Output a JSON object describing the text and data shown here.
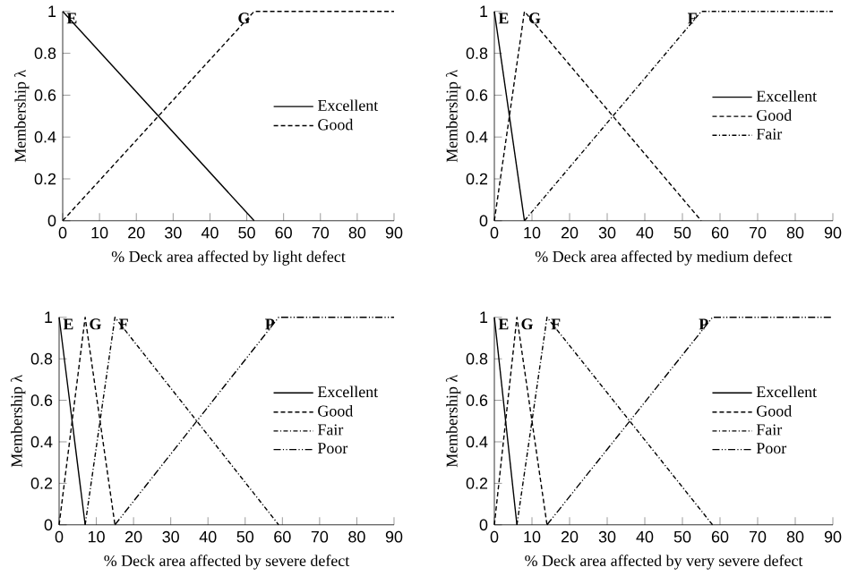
{
  "chart_data": [
    {
      "type": "line",
      "xlabel": "% Deck area affected by light defect",
      "ylabel": "Membership λ",
      "xlim": [
        0,
        90
      ],
      "xticks": [
        0,
        10,
        20,
        30,
        40,
        50,
        60,
        70,
        80,
        90
      ],
      "ylim": [
        0,
        1
      ],
      "yticks": [
        0,
        0.2,
        0.4,
        0.6,
        0.8,
        1
      ],
      "legend": "right",
      "series": [
        {
          "name": "Excellent",
          "color": "#000000",
          "line_style": "solid",
          "x": [
            0,
            52
          ],
          "values": [
            1,
            0
          ]
        },
        {
          "name": "Good",
          "color": "#000000",
          "line_style": "dashed",
          "x": [
            0,
            52,
            90
          ],
          "values": [
            0,
            1,
            1
          ]
        }
      ],
      "annotations": [
        {
          "text": "E",
          "x": 0,
          "y": 1
        },
        {
          "text": "G",
          "x": 52,
          "y": 1
        }
      ]
    },
    {
      "type": "line",
      "xlabel": "% Deck area affected by medium defect",
      "ylabel": "Membership λ",
      "xlim": [
        0,
        90
      ],
      "xticks": [
        0,
        10,
        20,
        30,
        40,
        50,
        60,
        70,
        80,
        90
      ],
      "ylim": [
        0,
        1
      ],
      "yticks": [
        0,
        0.2,
        0.4,
        0.6,
        0.8,
        1
      ],
      "legend": "right",
      "series": [
        {
          "name": "Excellent",
          "color": "#000000",
          "line_style": "solid",
          "x": [
            0,
            8
          ],
          "values": [
            1,
            0
          ]
        },
        {
          "name": "Good",
          "color": "#000000",
          "line_style": "dashed",
          "x": [
            0,
            8,
            55
          ],
          "values": [
            0,
            1,
            0
          ]
        },
        {
          "name": "Fair",
          "color": "#000000",
          "line_style": "dashdot",
          "x": [
            8,
            55,
            90
          ],
          "values": [
            0,
            1,
            1
          ]
        }
      ],
      "annotations": [
        {
          "text": "E",
          "x": 0,
          "y": 1
        },
        {
          "text": "G",
          "x": 8,
          "y": 1
        },
        {
          "text": "F",
          "x": 55,
          "y": 1
        }
      ]
    },
    {
      "type": "line",
      "xlabel": "% Deck area affected by severe defect",
      "ylabel": "Membership λ",
      "xlim": [
        0,
        90
      ],
      "xticks": [
        0,
        10,
        20,
        30,
        40,
        50,
        60,
        70,
        80,
        90
      ],
      "ylim": [
        0,
        1
      ],
      "yticks": [
        0,
        0.2,
        0.4,
        0.6,
        0.8,
        1
      ],
      "legend": "right",
      "series": [
        {
          "name": "Excellent",
          "color": "#000000",
          "line_style": "solid",
          "x": [
            0,
            7
          ],
          "values": [
            1,
            0
          ]
        },
        {
          "name": "Good",
          "color": "#000000",
          "line_style": "dashed",
          "x": [
            0,
            7,
            15
          ],
          "values": [
            0,
            1,
            0
          ]
        },
        {
          "name": "Fair",
          "color": "#000000",
          "line_style": "dashdot",
          "x": [
            7,
            15,
            59
          ],
          "values": [
            0,
            1,
            0
          ]
        },
        {
          "name": "Poor",
          "color": "#000000",
          "line_style": "dashdotdot",
          "x": [
            15,
            59,
            90
          ],
          "values": [
            0,
            1,
            1
          ]
        }
      ],
      "annotations": [
        {
          "text": "E",
          "x": 0,
          "y": 1
        },
        {
          "text": "G",
          "x": 7,
          "y": 1
        },
        {
          "text": "F",
          "x": 15,
          "y": 1
        },
        {
          "text": "P",
          "x": 59,
          "y": 1
        }
      ]
    },
    {
      "type": "line",
      "xlabel": "% Deck area affected by very severe defect",
      "ylabel": "Membership λ",
      "xlim": [
        0,
        90
      ],
      "xticks": [
        0,
        10,
        20,
        30,
        40,
        50,
        60,
        70,
        80,
        90
      ],
      "ylim": [
        0,
        1
      ],
      "yticks": [
        0,
        0.2,
        0.4,
        0.6,
        0.8,
        1
      ],
      "legend": "right",
      "series": [
        {
          "name": "Excellent",
          "color": "#000000",
          "line_style": "solid",
          "x": [
            0,
            6
          ],
          "values": [
            1,
            0
          ]
        },
        {
          "name": "Good",
          "color": "#000000",
          "line_style": "dashed",
          "x": [
            0,
            6,
            14
          ],
          "values": [
            0,
            1,
            0
          ]
        },
        {
          "name": "Fair",
          "color": "#000000",
          "line_style": "dashdot",
          "x": [
            6,
            14,
            58
          ],
          "values": [
            0,
            1,
            0
          ]
        },
        {
          "name": "Poor",
          "color": "#000000",
          "line_style": "dashdotdot",
          "x": [
            14,
            58,
            90
          ],
          "values": [
            0,
            1,
            1
          ]
        }
      ],
      "annotations": [
        {
          "text": "E",
          "x": 0,
          "y": 1
        },
        {
          "text": "G",
          "x": 6,
          "y": 1
        },
        {
          "text": "F",
          "x": 14,
          "y": 1
        },
        {
          "text": "P",
          "x": 58,
          "y": 1
        }
      ]
    }
  ]
}
